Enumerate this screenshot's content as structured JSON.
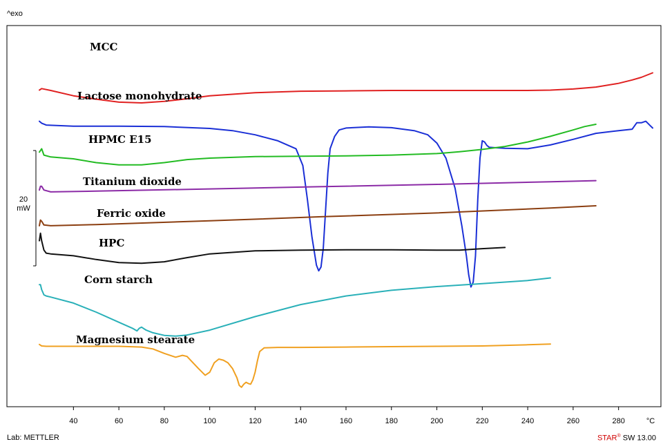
{
  "header": {
    "exo_label": "^exo"
  },
  "footer": {
    "lab": "Lab: METTLER",
    "star": "STAR",
    "reg": "®",
    "sw": " SW 13.00"
  },
  "scale_bar": {
    "value": "20",
    "unit": "mW"
  },
  "chart_data": {
    "type": "line",
    "title": "",
    "xlabel": "°C",
    "ylabel": "",
    "xlim": [
      25,
      295
    ],
    "ylim": [
      0,
      100
    ],
    "grid": false,
    "x_ticks": [
      40,
      60,
      80,
      100,
      120,
      140,
      160,
      180,
      200,
      220,
      240,
      260,
      280
    ],
    "series": [
      {
        "name": "MCC",
        "color": "#e02020",
        "x": [
          25,
          26,
          30,
          40,
          50,
          60,
          70,
          80,
          90,
          100,
          120,
          140,
          160,
          180,
          200,
          220,
          240,
          250,
          260,
          270,
          280,
          286,
          290,
          295
        ],
        "y": [
          84.1,
          84.5,
          84.0,
          82.6,
          81.7,
          80.9,
          80.7,
          81.1,
          81.8,
          82.6,
          83.4,
          83.8,
          83.9,
          84.0,
          84.0,
          84.0,
          84.0,
          84.1,
          84.4,
          84.9,
          85.9,
          86.8,
          87.5,
          88.7
        ]
      },
      {
        "name": "Lactose monohydrate",
        "color": "#1a2fd6",
        "x": [
          25,
          26,
          28,
          40,
          60,
          80,
          100,
          110,
          120,
          130,
          138,
          141,
          143,
          145,
          147,
          148,
          149,
          150,
          151,
          152,
          153,
          155,
          157,
          160,
          170,
          180,
          190,
          196,
          200,
          204,
          208,
          211,
          213,
          214,
          215,
          216,
          217,
          218,
          219,
          220,
          221,
          222,
          223,
          225,
          230,
          240,
          250,
          260,
          270,
          280,
          286,
          288,
          290,
          292,
          294,
          295
        ],
        "y": [
          75.8,
          75.3,
          74.8,
          74.5,
          74.5,
          74.4,
          73.9,
          73.3,
          72.2,
          70.6,
          68.5,
          64.0,
          55.0,
          45.0,
          37.5,
          36.0,
          37.0,
          42.0,
          52.0,
          62.0,
          68.5,
          71.8,
          73.5,
          74.0,
          74.3,
          74.1,
          73.3,
          72.2,
          70.0,
          66.0,
          58.0,
          48.0,
          40.0,
          35.0,
          31.7,
          33.0,
          40.0,
          55.0,
          66.0,
          70.6,
          70.3,
          69.4,
          68.9,
          68.8,
          68.6,
          68.5,
          69.5,
          71.0,
          72.6,
          73.3,
          73.7,
          75.4,
          75.4,
          75.8,
          74.6,
          74.0
        ]
      },
      {
        "name": "HPMC E15",
        "color": "#22bb22",
        "x": [
          25,
          26,
          27,
          30,
          40,
          50,
          60,
          70,
          80,
          90,
          100,
          120,
          140,
          160,
          180,
          200,
          210,
          220,
          230,
          240,
          250,
          260,
          265,
          270
        ],
        "y": [
          67.6,
          68.5,
          66.8,
          66.3,
          65.8,
          64.8,
          64.2,
          64.2,
          64.8,
          65.6,
          66.0,
          66.4,
          66.5,
          66.6,
          66.8,
          67.2,
          67.7,
          68.3,
          69.1,
          70.3,
          71.8,
          73.5,
          74.4,
          75.0
        ]
      },
      {
        "name": "Titanium dioxide",
        "color": "#8b2aa6",
        "x": [
          25,
          25.5,
          26,
          27,
          30,
          50,
          100,
          150,
          200,
          250,
          270
        ],
        "y": [
          57.5,
          58.5,
          58.5,
          57.5,
          57.0,
          57.2,
          57.8,
          58.4,
          59.0,
          59.7,
          60.0
        ]
      },
      {
        "name": "Ferric oxide",
        "color": "#8b3e10",
        "x": [
          25,
          25.5,
          26,
          27,
          30,
          50,
          100,
          150,
          200,
          250,
          270
        ],
        "y": [
          48.0,
          49.5,
          49.2,
          48.2,
          48.0,
          48.3,
          49.3,
          50.4,
          51.4,
          52.7,
          53.3
        ]
      },
      {
        "name": "HPC",
        "color": "#111111",
        "x": [
          25,
          25.5,
          26,
          27,
          28,
          30,
          40,
          50,
          60,
          70,
          80,
          90,
          100,
          120,
          140,
          160,
          180,
          200,
          210,
          220,
          230
        ],
        "y": [
          44.0,
          46.0,
          44.0,
          41.5,
          40.7,
          40.5,
          40.0,
          39.0,
          38.2,
          38.0,
          38.4,
          39.5,
          40.5,
          41.3,
          41.5,
          41.6,
          41.6,
          41.5,
          41.5,
          41.9,
          42.2
        ]
      },
      {
        "name": "Corn starch",
        "color": "#29b0b8",
        "x": [
          25,
          25.5,
          26,
          27,
          28,
          30,
          40,
          50,
          60,
          66,
          68,
          69,
          70,
          72,
          75,
          80,
          85,
          90,
          100,
          120,
          140,
          160,
          180,
          200,
          220,
          240,
          250
        ],
        "y": [
          32.3,
          32.3,
          31.0,
          29.6,
          29.3,
          29.0,
          27.4,
          25.0,
          22.3,
          20.7,
          20.0,
          20.7,
          21.0,
          20.2,
          19.5,
          18.8,
          18.6,
          18.9,
          20.2,
          23.8,
          27.0,
          29.3,
          30.8,
          31.8,
          32.6,
          33.4,
          34.1
        ]
      },
      {
        "name": "Magnesium stearate",
        "color": "#f0a020",
        "x": [
          25,
          26,
          28,
          30,
          40,
          50,
          60,
          70,
          75,
          80,
          85,
          88,
          90,
          95,
          98,
          100,
          102,
          104,
          106,
          108,
          110,
          112,
          113,
          114,
          115,
          116,
          117,
          118,
          119,
          120,
          121,
          122,
          124,
          130,
          140,
          160,
          180,
          200,
          220,
          240,
          250
        ],
        "y": [
          16.4,
          16.0,
          15.9,
          15.9,
          15.9,
          15.9,
          15.9,
          15.7,
          15.2,
          14.0,
          13.0,
          13.5,
          13.2,
          10.0,
          8.2,
          9.0,
          11.5,
          12.5,
          12.2,
          11.5,
          10.0,
          7.5,
          5.5,
          5.0,
          5.8,
          6.3,
          6.0,
          5.8,
          7.0,
          9.0,
          12.0,
          14.5,
          15.5,
          15.6,
          15.6,
          15.7,
          15.8,
          15.9,
          16.0,
          16.3,
          16.5
        ]
      }
    ],
    "series_labels": [
      "MCC",
      "Lactose monohydrate",
      "HPMC E15",
      "Titanium dioxide",
      "Ferric oxide",
      "HPC",
      "Corn starch",
      "Magnesium stearate"
    ]
  }
}
